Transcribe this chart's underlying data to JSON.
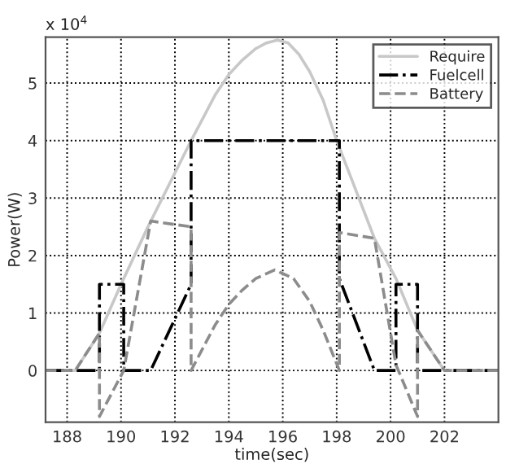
{
  "chart_data": {
    "type": "line",
    "xlabel": "time(sec)",
    "ylabel": "Power(W)",
    "annotations": [
      "x 10$^{4}$"
    ],
    "xlim": [
      187.2,
      204
    ],
    "xticks": [
      188,
      190,
      192,
      194,
      196,
      198,
      200,
      202
    ],
    "ylim": [
      -0.9,
      5.8
    ],
    "yticks": [
      0,
      1,
      2,
      3,
      4,
      5
    ],
    "grid": true,
    "legend": "top right",
    "series": [
      {
        "name": "Require",
        "color": "#c8c8c8",
        "line_style": "solid",
        "x": [
          187.2,
          188.3,
          189.2,
          190,
          191,
          192.6,
          193.5,
          194,
          194.5,
          195,
          195.4,
          195.8,
          196.2,
          196.6,
          197,
          197.5,
          198,
          199.4,
          200.2,
          201,
          202,
          204
        ],
        "values": [
          0,
          0,
          0.65,
          1.5,
          2.5,
          4.0,
          4.8,
          5.15,
          5.4,
          5.6,
          5.7,
          5.75,
          5.7,
          5.5,
          5.2,
          4.7,
          4.0,
          2.3,
          1.6,
          0.7,
          0,
          0
        ]
      },
      {
        "name": "Fuelcell",
        "color": "#000000",
        "line_style": "dashdot",
        "x": [
          187.2,
          189.2,
          189.2,
          190.1,
          190.1,
          191.1,
          192.6,
          192.6,
          198.1,
          198.1,
          199.4,
          200.2,
          200.2,
          201,
          201,
          204
        ],
        "values": [
          0,
          0,
          1.5,
          1.5,
          0,
          0,
          1.5,
          4.0,
          4.0,
          1.6,
          0,
          0,
          1.5,
          1.5,
          0,
          0
        ]
      },
      {
        "name": "Battery",
        "color": "#8c8c8c",
        "line_style": "dashed",
        "x": [
          187.2,
          188.3,
          189.2,
          189.2,
          190.1,
          191.1,
          192.6,
          192.6,
          193.5,
          194,
          194.5,
          195,
          195.7,
          196.4,
          197,
          197.5,
          198.1,
          198.1,
          199.4,
          200.2,
          201,
          201,
          202,
          204
        ],
        "values": [
          0,
          0,
          0.65,
          -0.8,
          0,
          2.6,
          2.5,
          0,
          0.8,
          1.15,
          1.4,
          1.6,
          1.75,
          1.6,
          1.2,
          0.7,
          0,
          2.4,
          2.3,
          0.1,
          -0.8,
          0.7,
          0,
          0
        ]
      }
    ]
  }
}
